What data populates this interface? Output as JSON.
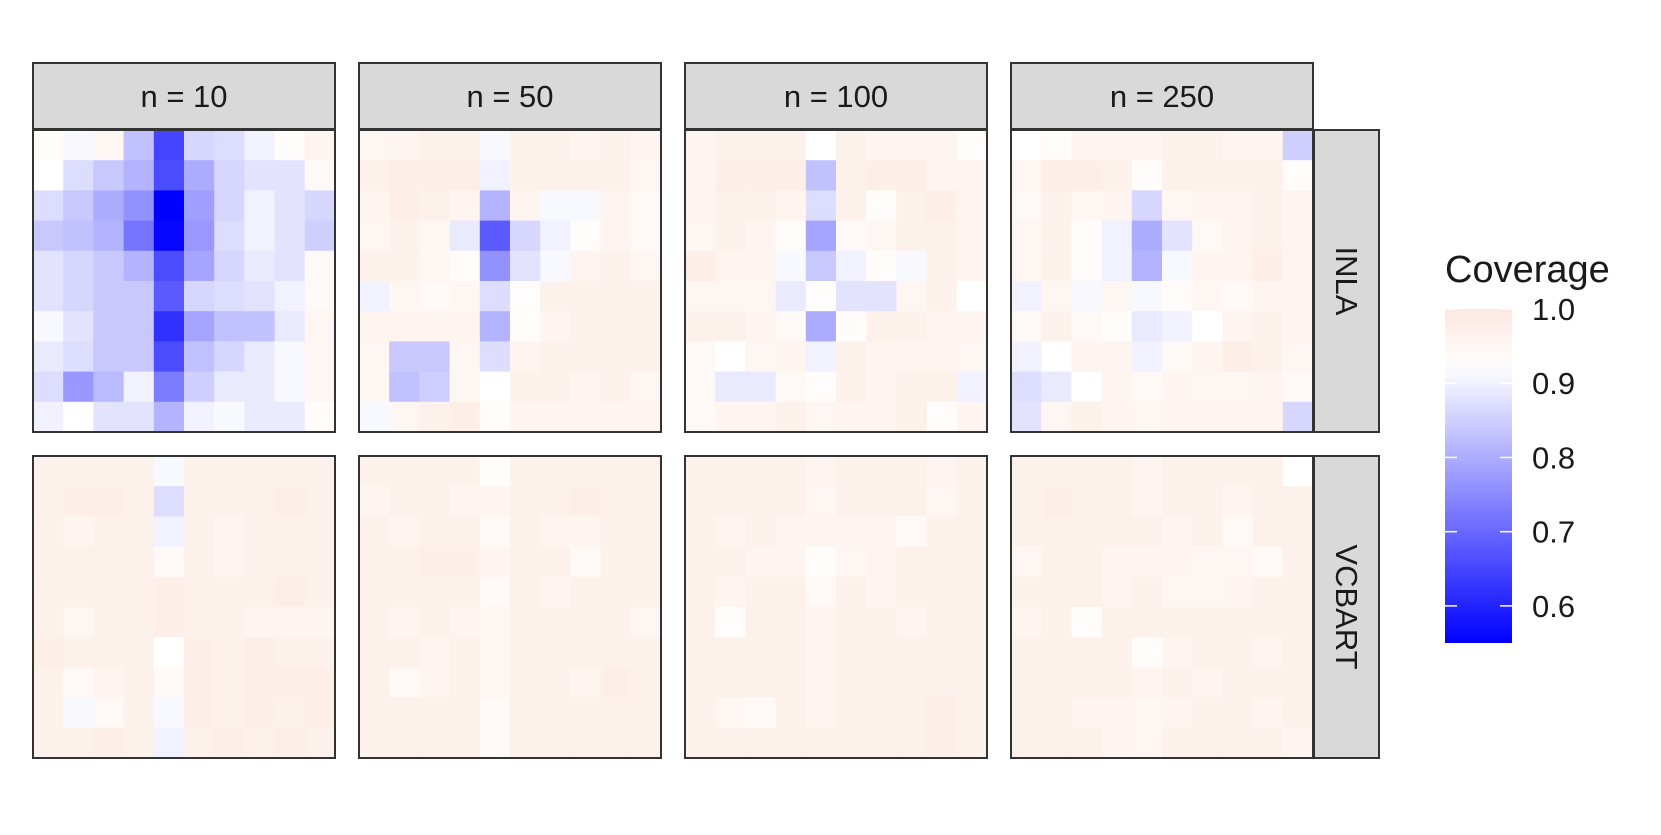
{
  "chart_data": {
    "type": "heatmap",
    "title": "",
    "legend": {
      "title": "Coverage",
      "position": "right",
      "range": [
        0.55,
        1.0
      ],
      "ticks": [
        "1.0",
        "0.9",
        "0.8",
        "0.7",
        "0.6"
      ],
      "tick_values": [
        1.0,
        0.9,
        0.8,
        0.7,
        0.6
      ],
      "colors": {
        "low": "#0000ff",
        "mid": "#ffffff",
        "high": "#fce8e0",
        "mid_value": 0.92
      }
    },
    "columns": [
      "n = 10",
      "n = 50",
      "n = 100",
      "n = 250"
    ],
    "rows": [
      "INLA",
      "VCBART"
    ],
    "grid_size": [
      10,
      10
    ],
    "panels": [
      {
        "row": "INLA",
        "col": "n = 10",
        "values": [
          [
            0.93,
            0.91,
            0.95,
            0.83,
            0.65,
            0.86,
            0.87,
            0.9,
            0.93,
            0.96
          ],
          [
            0.92,
            0.87,
            0.84,
            0.81,
            0.66,
            0.8,
            0.86,
            0.88,
            0.88,
            0.94
          ],
          [
            0.87,
            0.84,
            0.8,
            0.76,
            0.55,
            0.78,
            0.86,
            0.9,
            0.88,
            0.86
          ],
          [
            0.84,
            0.83,
            0.81,
            0.72,
            0.56,
            0.77,
            0.87,
            0.9,
            0.88,
            0.85
          ],
          [
            0.88,
            0.86,
            0.84,
            0.81,
            0.66,
            0.79,
            0.86,
            0.89,
            0.88,
            0.94
          ],
          [
            0.88,
            0.86,
            0.84,
            0.84,
            0.68,
            0.86,
            0.87,
            0.88,
            0.9,
            0.94
          ],
          [
            0.91,
            0.88,
            0.84,
            0.84,
            0.62,
            0.79,
            0.83,
            0.83,
            0.89,
            0.95
          ],
          [
            0.89,
            0.87,
            0.84,
            0.84,
            0.66,
            0.83,
            0.86,
            0.89,
            0.91,
            0.95
          ],
          [
            0.87,
            0.77,
            0.82,
            0.9,
            0.73,
            0.85,
            0.89,
            0.89,
            0.91,
            0.95
          ],
          [
            0.9,
            0.92,
            0.88,
            0.88,
            0.81,
            0.9,
            0.91,
            0.89,
            0.89,
            0.93
          ]
        ]
      },
      {
        "row": "INLA",
        "col": "n = 50",
        "values": [
          [
            0.95,
            0.96,
            0.97,
            0.97,
            0.91,
            0.97,
            0.97,
            0.96,
            0.97,
            0.96
          ],
          [
            0.97,
            0.98,
            0.98,
            0.98,
            0.9,
            0.97,
            0.97,
            0.97,
            0.97,
            0.95
          ],
          [
            0.96,
            0.98,
            0.97,
            0.96,
            0.81,
            0.96,
            0.91,
            0.91,
            0.96,
            0.94
          ],
          [
            0.95,
            0.97,
            0.95,
            0.89,
            0.68,
            0.86,
            0.9,
            0.93,
            0.96,
            0.94
          ],
          [
            0.97,
            0.97,
            0.95,
            0.93,
            0.76,
            0.88,
            0.91,
            0.96,
            0.97,
            0.95
          ],
          [
            0.9,
            0.95,
            0.94,
            0.95,
            0.87,
            0.93,
            0.97,
            0.97,
            0.97,
            0.97
          ],
          [
            0.96,
            0.96,
            0.96,
            0.96,
            0.81,
            0.93,
            0.96,
            0.97,
            0.97,
            0.97
          ],
          [
            0.95,
            0.84,
            0.84,
            0.95,
            0.87,
            0.96,
            0.97,
            0.97,
            0.97,
            0.97
          ],
          [
            0.95,
            0.83,
            0.85,
            0.95,
            0.92,
            0.97,
            0.97,
            0.96,
            0.97,
            0.95
          ],
          [
            0.91,
            0.95,
            0.97,
            0.98,
            0.93,
            0.96,
            0.96,
            0.96,
            0.96,
            0.96
          ]
        ]
      },
      {
        "row": "INLA",
        "col": "n = 100",
        "values": [
          [
            0.96,
            0.97,
            0.97,
            0.97,
            0.92,
            0.97,
            0.96,
            0.96,
            0.96,
            0.93
          ],
          [
            0.96,
            0.98,
            0.98,
            0.98,
            0.83,
            0.97,
            0.98,
            0.98,
            0.96,
            0.96
          ],
          [
            0.96,
            0.97,
            0.97,
            0.96,
            0.87,
            0.97,
            0.93,
            0.97,
            0.98,
            0.96
          ],
          [
            0.95,
            0.97,
            0.96,
            0.93,
            0.79,
            0.94,
            0.95,
            0.97,
            0.97,
            0.96
          ],
          [
            0.98,
            0.96,
            0.96,
            0.91,
            0.84,
            0.9,
            0.93,
            0.91,
            0.97,
            0.96
          ],
          [
            0.95,
            0.95,
            0.95,
            0.89,
            0.93,
            0.88,
            0.88,
            0.95,
            0.97,
            0.92
          ],
          [
            0.97,
            0.97,
            0.96,
            0.94,
            0.8,
            0.93,
            0.97,
            0.97,
            0.96,
            0.96
          ],
          [
            0.94,
            0.92,
            0.95,
            0.96,
            0.9,
            0.97,
            0.96,
            0.96,
            0.96,
            0.95
          ],
          [
            0.94,
            0.89,
            0.89,
            0.94,
            0.93,
            0.97,
            0.96,
            0.97,
            0.97,
            0.9
          ],
          [
            0.94,
            0.96,
            0.96,
            0.97,
            0.95,
            0.96,
            0.96,
            0.97,
            0.93,
            0.96
          ]
        ]
      },
      {
        "row": "INLA",
        "col": "n = 250",
        "values": [
          [
            0.92,
            0.93,
            0.96,
            0.96,
            0.96,
            0.97,
            0.97,
            0.96,
            0.96,
            0.85
          ],
          [
            0.95,
            0.98,
            0.98,
            0.97,
            0.93,
            0.97,
            0.97,
            0.97,
            0.97,
            0.93
          ],
          [
            0.94,
            0.97,
            0.95,
            0.96,
            0.86,
            0.95,
            0.96,
            0.96,
            0.97,
            0.96
          ],
          [
            0.95,
            0.97,
            0.93,
            0.9,
            0.8,
            0.88,
            0.94,
            0.96,
            0.97,
            0.96
          ],
          [
            0.95,
            0.97,
            0.93,
            0.9,
            0.81,
            0.91,
            0.96,
            0.96,
            0.98,
            0.96
          ],
          [
            0.9,
            0.95,
            0.91,
            0.95,
            0.91,
            0.93,
            0.95,
            0.94,
            0.96,
            0.96
          ],
          [
            0.94,
            0.97,
            0.94,
            0.93,
            0.89,
            0.9,
            0.92,
            0.96,
            0.97,
            0.96
          ],
          [
            0.9,
            0.92,
            0.96,
            0.96,
            0.9,
            0.94,
            0.96,
            0.98,
            0.97,
            0.95
          ],
          [
            0.87,
            0.89,
            0.92,
            0.96,
            0.94,
            0.96,
            0.95,
            0.95,
            0.96,
            0.94
          ],
          [
            0.88,
            0.95,
            0.97,
            0.96,
            0.95,
            0.96,
            0.96,
            0.96,
            0.96,
            0.86
          ]
        ]
      },
      {
        "row": "VCBART",
        "col": "n = 10",
        "values": [
          [
            0.97,
            0.97,
            0.97,
            0.97,
            0.91,
            0.97,
            0.97,
            0.97,
            0.97,
            0.97
          ],
          [
            0.97,
            0.98,
            0.98,
            0.97,
            0.87,
            0.97,
            0.97,
            0.97,
            0.98,
            0.97
          ],
          [
            0.97,
            0.96,
            0.97,
            0.97,
            0.9,
            0.97,
            0.96,
            0.97,
            0.97,
            0.97
          ],
          [
            0.97,
            0.97,
            0.97,
            0.97,
            0.94,
            0.97,
            0.96,
            0.97,
            0.97,
            0.97
          ],
          [
            0.97,
            0.97,
            0.97,
            0.97,
            0.98,
            0.97,
            0.97,
            0.97,
            0.98,
            0.97
          ],
          [
            0.97,
            0.95,
            0.97,
            0.97,
            0.98,
            0.97,
            0.97,
            0.96,
            0.96,
            0.96
          ],
          [
            0.98,
            0.97,
            0.97,
            0.97,
            0.92,
            0.98,
            0.97,
            0.98,
            0.97,
            0.97
          ],
          [
            0.97,
            0.94,
            0.96,
            0.97,
            0.94,
            0.98,
            0.97,
            0.98,
            0.98,
            0.98
          ],
          [
            0.97,
            0.91,
            0.94,
            0.97,
            0.91,
            0.98,
            0.97,
            0.98,
            0.97,
            0.98
          ],
          [
            0.97,
            0.97,
            0.98,
            0.97,
            0.9,
            0.97,
            0.98,
            0.97,
            0.98,
            0.97
          ]
        ]
      },
      {
        "row": "VCBART",
        "col": "n = 50",
        "values": [
          [
            0.97,
            0.97,
            0.97,
            0.97,
            0.93,
            0.97,
            0.97,
            0.97,
            0.97,
            0.97
          ],
          [
            0.96,
            0.97,
            0.97,
            0.96,
            0.96,
            0.97,
            0.97,
            0.98,
            0.97,
            0.97
          ],
          [
            0.97,
            0.96,
            0.97,
            0.97,
            0.94,
            0.97,
            0.96,
            0.96,
            0.97,
            0.97
          ],
          [
            0.97,
            0.97,
            0.98,
            0.98,
            0.96,
            0.97,
            0.97,
            0.94,
            0.97,
            0.97
          ],
          [
            0.97,
            0.97,
            0.97,
            0.97,
            0.94,
            0.97,
            0.96,
            0.97,
            0.97,
            0.97
          ],
          [
            0.97,
            0.96,
            0.97,
            0.96,
            0.95,
            0.97,
            0.97,
            0.97,
            0.97,
            0.95
          ],
          [
            0.97,
            0.97,
            0.96,
            0.97,
            0.95,
            0.97,
            0.97,
            0.97,
            0.97,
            0.97
          ],
          [
            0.97,
            0.94,
            0.96,
            0.97,
            0.95,
            0.97,
            0.97,
            0.96,
            0.98,
            0.97
          ],
          [
            0.97,
            0.97,
            0.97,
            0.97,
            0.94,
            0.97,
            0.97,
            0.97,
            0.97,
            0.97
          ],
          [
            0.97,
            0.97,
            0.97,
            0.97,
            0.94,
            0.97,
            0.97,
            0.97,
            0.97,
            0.97
          ]
        ]
      },
      {
        "row": "VCBART",
        "col": "n = 100",
        "values": [
          [
            0.97,
            0.97,
            0.97,
            0.97,
            0.96,
            0.97,
            0.97,
            0.97,
            0.96,
            0.97
          ],
          [
            0.97,
            0.97,
            0.97,
            0.97,
            0.95,
            0.97,
            0.97,
            0.97,
            0.95,
            0.97
          ],
          [
            0.97,
            0.96,
            0.97,
            0.96,
            0.96,
            0.96,
            0.96,
            0.94,
            0.97,
            0.97
          ],
          [
            0.97,
            0.97,
            0.96,
            0.96,
            0.93,
            0.95,
            0.96,
            0.97,
            0.97,
            0.97
          ],
          [
            0.97,
            0.96,
            0.97,
            0.97,
            0.94,
            0.97,
            0.96,
            0.97,
            0.97,
            0.97
          ],
          [
            0.97,
            0.93,
            0.97,
            0.97,
            0.96,
            0.97,
            0.97,
            0.96,
            0.97,
            0.97
          ],
          [
            0.97,
            0.97,
            0.97,
            0.97,
            0.96,
            0.97,
            0.97,
            0.97,
            0.97,
            0.97
          ],
          [
            0.97,
            0.97,
            0.97,
            0.97,
            0.96,
            0.97,
            0.97,
            0.97,
            0.97,
            0.97
          ],
          [
            0.97,
            0.95,
            0.94,
            0.97,
            0.96,
            0.97,
            0.97,
            0.97,
            0.98,
            0.97
          ],
          [
            0.97,
            0.97,
            0.97,
            0.97,
            0.97,
            0.97,
            0.97,
            0.97,
            0.98,
            0.97
          ]
        ]
      },
      {
        "row": "VCBART",
        "col": "n = 250",
        "values": [
          [
            0.97,
            0.97,
            0.97,
            0.97,
            0.96,
            0.97,
            0.97,
            0.97,
            0.97,
            0.92
          ],
          [
            0.97,
            0.98,
            0.97,
            0.97,
            0.96,
            0.97,
            0.97,
            0.96,
            0.97,
            0.97
          ],
          [
            0.97,
            0.97,
            0.97,
            0.97,
            0.97,
            0.96,
            0.97,
            0.94,
            0.97,
            0.97
          ],
          [
            0.95,
            0.97,
            0.97,
            0.96,
            0.96,
            0.96,
            0.95,
            0.95,
            0.94,
            0.97
          ],
          [
            0.97,
            0.97,
            0.97,
            0.96,
            0.97,
            0.95,
            0.95,
            0.96,
            0.97,
            0.97
          ],
          [
            0.96,
            0.97,
            0.93,
            0.97,
            0.97,
            0.97,
            0.97,
            0.97,
            0.97,
            0.97
          ],
          [
            0.97,
            0.97,
            0.97,
            0.97,
            0.93,
            0.96,
            0.97,
            0.97,
            0.96,
            0.97
          ],
          [
            0.97,
            0.97,
            0.97,
            0.97,
            0.96,
            0.97,
            0.96,
            0.97,
            0.97,
            0.97
          ],
          [
            0.97,
            0.97,
            0.96,
            0.96,
            0.95,
            0.96,
            0.97,
            0.97,
            0.96,
            0.97
          ],
          [
            0.97,
            0.97,
            0.97,
            0.96,
            0.95,
            0.97,
            0.97,
            0.97,
            0.97,
            0.96
          ]
        ]
      }
    ]
  }
}
